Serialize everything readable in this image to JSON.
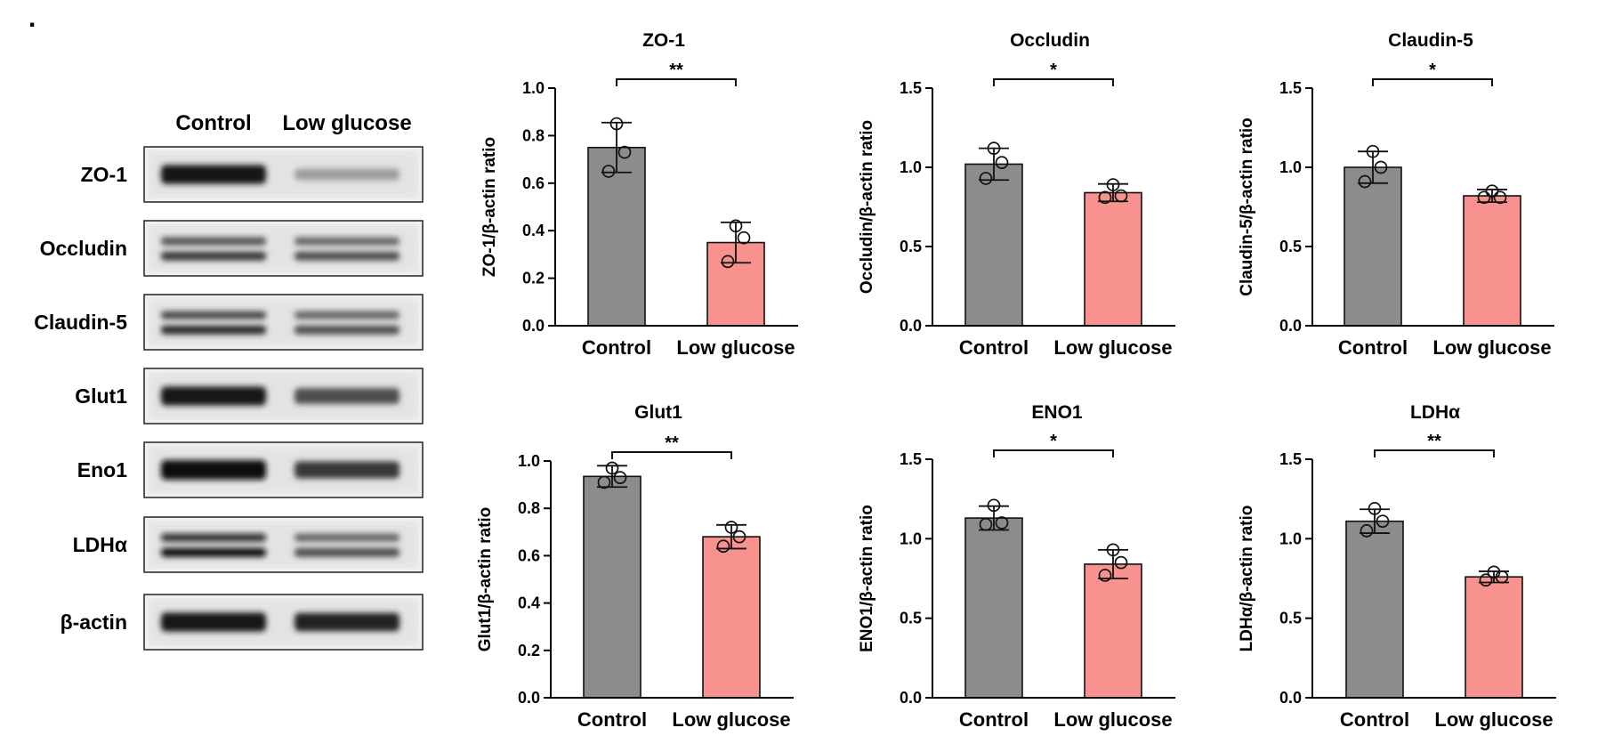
{
  "panel_letter": ".",
  "blot": {
    "column_labels": [
      "Control",
      "Low glucose"
    ],
    "rows": [
      {
        "label": "ZO-1",
        "intensities": [
          0.95,
          0.35
        ],
        "double_band": false
      },
      {
        "label": "Occludin",
        "intensities": [
          0.8,
          0.7
        ],
        "double_band": true
      },
      {
        "label": "Claudin-5",
        "intensities": [
          0.85,
          0.7
        ],
        "double_band": true
      },
      {
        "label": "Glut1",
        "intensities": [
          0.95,
          0.7
        ],
        "double_band": false
      },
      {
        "label": "Eno1",
        "intensities": [
          1.0,
          0.8
        ],
        "double_band": false
      },
      {
        "label": "LDHα",
        "intensities": [
          1.0,
          0.7
        ],
        "double_band": true
      },
      {
        "label": "β-actin",
        "intensities": [
          0.95,
          0.9
        ],
        "double_band": false
      }
    ]
  },
  "colors": {
    "control_bar": "#8c8c8c",
    "low_glucose_bar": "#f7928e",
    "axis": "#000000"
  },
  "chart_data": [
    {
      "type": "bar",
      "title": "ZO-1",
      "ylabel": "ZO-1/β-actin ratio",
      "categories": [
        "Control",
        "Low glucose"
      ],
      "values": [
        0.75,
        0.35
      ],
      "errors": [
        0.105,
        0.085
      ],
      "points": [
        [
          0.85,
          0.73,
          0.65
        ],
        [
          0.42,
          0.37,
          0.27
        ]
      ],
      "ylim": [
        0,
        1.0
      ],
      "yticks": [
        "0.0",
        "0.2",
        "0.4",
        "0.6",
        "0.8",
        "1.0"
      ],
      "significance": "**"
    },
    {
      "type": "bar",
      "title": "Occludin",
      "ylabel": "Occludin/β-actin ratio",
      "categories": [
        "Control",
        "Low glucose"
      ],
      "values": [
        1.02,
        0.84
      ],
      "errors": [
        0.1,
        0.055
      ],
      "points": [
        [
          1.12,
          1.03,
          0.93
        ],
        [
          0.89,
          0.82,
          0.81
        ]
      ],
      "ylim": [
        0,
        1.5
      ],
      "yticks": [
        "0.0",
        "0.5",
        "1.0",
        "1.5"
      ],
      "significance": "*"
    },
    {
      "type": "bar",
      "title": "Claudin-5",
      "ylabel": "Claudin-5/β-actin ratio",
      "categories": [
        "Control",
        "Low glucose"
      ],
      "values": [
        1.0,
        0.82
      ],
      "errors": [
        0.1,
        0.04
      ],
      "points": [
        [
          1.1,
          1.0,
          0.91
        ],
        [
          0.85,
          0.81,
          0.81
        ]
      ],
      "ylim": [
        0,
        1.5
      ],
      "yticks": [
        "0.0",
        "0.5",
        "1.0",
        "1.5"
      ],
      "significance": "*"
    },
    {
      "type": "bar",
      "title": "Glut1",
      "ylabel": "Glut1/β-actin ratio",
      "categories": [
        "Control",
        "Low glucose"
      ],
      "values": [
        0.935,
        0.68
      ],
      "errors": [
        0.045,
        0.05
      ],
      "points": [
        [
          0.97,
          0.93,
          0.91
        ],
        [
          0.72,
          0.68,
          0.64
        ]
      ],
      "ylim": [
        0,
        1.0
      ],
      "yticks": [
        "0.0",
        "0.2",
        "0.4",
        "0.6",
        "0.8",
        "1.0"
      ],
      "significance": "**"
    },
    {
      "type": "bar",
      "title": "ENO1",
      "ylabel": "ENO1/β-actin ratio",
      "categories": [
        "Control",
        "Low glucose"
      ],
      "values": [
        1.13,
        0.84
      ],
      "errors": [
        0.075,
        0.09
      ],
      "points": [
        [
          1.21,
          1.1,
          1.09
        ],
        [
          0.93,
          0.85,
          0.77
        ]
      ],
      "ylim": [
        0,
        1.5
      ],
      "yticks": [
        "0.0",
        "0.5",
        "1.0",
        "1.5"
      ],
      "significance": "*"
    },
    {
      "type": "bar",
      "title": "LDHα",
      "ylabel": "LDHα/β-actin ratio",
      "categories": [
        "Control",
        "Low glucose"
      ],
      "values": [
        1.11,
        0.76
      ],
      "errors": [
        0.075,
        0.035
      ],
      "points": [
        [
          1.19,
          1.11,
          1.05
        ],
        [
          0.79,
          0.76,
          0.74
        ]
      ],
      "ylim": [
        0,
        1.5
      ],
      "yticks": [
        "0.0",
        "0.5",
        "1.0",
        "1.5"
      ],
      "significance": "**"
    }
  ]
}
